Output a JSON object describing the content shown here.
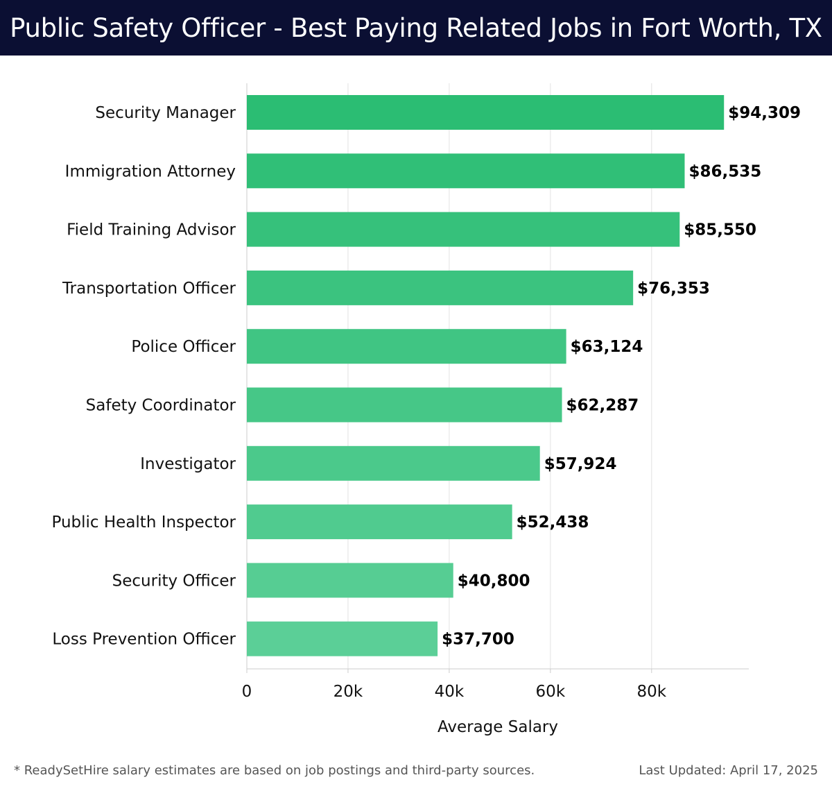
{
  "header": {
    "title": "Public Safety Officer - Best Paying Related Jobs in Fort Worth, TX"
  },
  "footer": {
    "note": "* ReadySetHire salary estimates are based on job postings and third-party sources.",
    "updated": "Last Updated: April 17, 2025"
  },
  "colors": {
    "title_bg": "#0b0f33",
    "bar_top": "#2bbd73",
    "bar_bottom": "#5bcf97",
    "grid": "#e2e2e2",
    "axis": "#cccccc"
  },
  "chart_data": {
    "type": "bar",
    "orientation": "horizontal",
    "title": "Public Safety Officer - Best Paying Related Jobs in Fort Worth, TX",
    "xlabel": "Average Salary",
    "ylabel": "",
    "xlim": [
      0,
      99000
    ],
    "xticks": [
      0,
      20000,
      40000,
      60000,
      80000
    ],
    "xtick_labels": [
      "0",
      "20k",
      "40k",
      "60k",
      "80k"
    ],
    "grid": true,
    "categories": [
      "Security Manager",
      "Immigration Attorney",
      "Field Training Advisor",
      "Transportation Officer",
      "Police Officer",
      "Safety Coordinator",
      "Investigator",
      "Public Health Inspector",
      "Security Officer",
      "Loss Prevention Officer"
    ],
    "values": [
      94309,
      86535,
      85550,
      76353,
      63124,
      62287,
      57924,
      52438,
      40800,
      37700
    ],
    "value_labels": [
      "$94,309",
      "$86,535",
      "$85,550",
      "$76,353",
      "$63,124",
      "$62,287",
      "$57,924",
      "$52,438",
      "$40,800",
      "$37,700"
    ]
  }
}
